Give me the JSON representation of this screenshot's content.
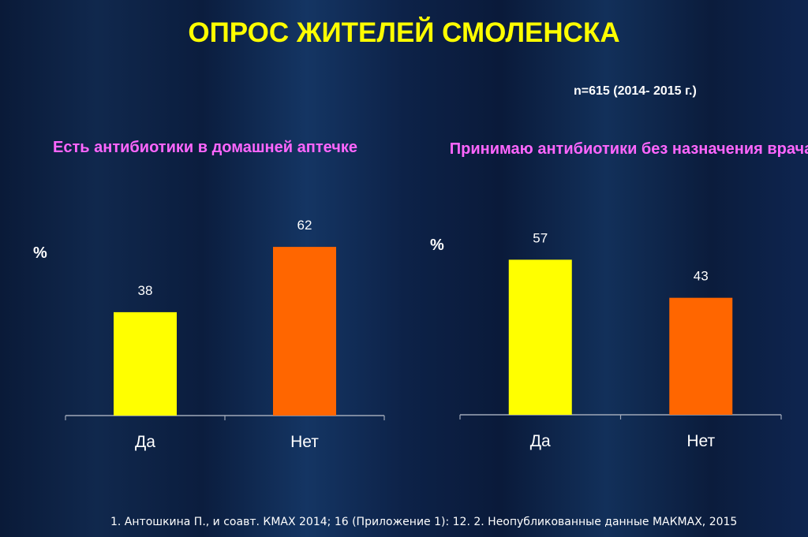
{
  "title": "ОПРОС ЖИТЕЛЕЙ СМОЛЕНСКА",
  "sample": "n=615 (2014- 2015 г.)",
  "footer": "1. Антошкина П., и соавт. КМАХ 2014; 16 (Приложение 1): 12. 2. Неопубликованные данные МАКМАХ, 2015",
  "chart_data": [
    {
      "type": "bar",
      "title": "Есть антибиотики в домашней аптечке",
      "ylabel": "%",
      "categories": [
        "Да",
        "Нет"
      ],
      "values": [
        38,
        62
      ],
      "value_labels": [
        "38",
        "62"
      ],
      "colors": [
        "#ffff00",
        "#ff6600"
      ],
      "ylim": [
        0,
        100
      ]
    },
    {
      "type": "bar",
      "title": "Принимаю антибиотики без назначения врача",
      "ylabel": "%",
      "categories": [
        "Да",
        "Нет"
      ],
      "values": [
        57,
        43
      ],
      "value_labels": [
        "57",
        "43"
      ],
      "colors": [
        "#ffff00",
        "#ff6600"
      ],
      "ylim": [
        0,
        100
      ]
    }
  ]
}
